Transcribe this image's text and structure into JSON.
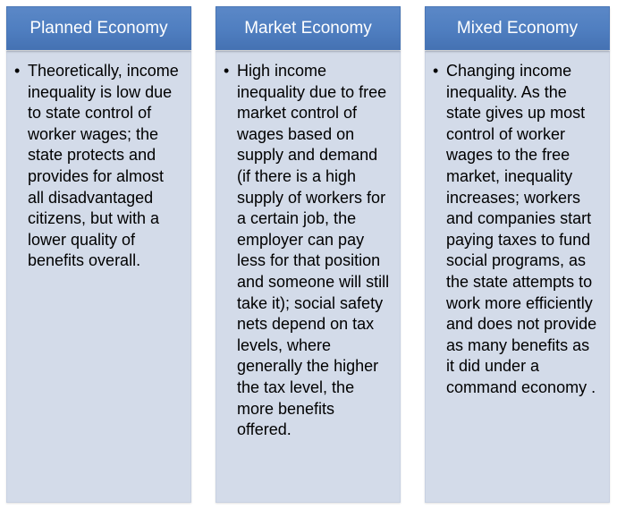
{
  "columns": [
    {
      "title": "Planned Economy",
      "bullet": "•",
      "text": "Theoretically, income inequality is low due to state control of worker wages; the state protects and provides for almost all disadvantaged citizens, but with a lower quality of benefits overall."
    },
    {
      "title": "Market Economy",
      "bullet": "•",
      "text": "High income inequality due to free market control of wages based on supply and demand (if there is a high supply of workers for a certain job, the employer can pay less for that position and someone will still take it); social safety nets depend on tax levels, where generally the higher the tax level, the more benefits offered."
    },
    {
      "title": "Mixed Economy",
      "bullet": "•",
      "text": "Changing income inequality. As the state gives up most control of worker wages to the free market, inequality increases; workers and companies start paying taxes to fund social programs, as the state attempts to work more efficiently and does not provide as many benefits as it did under a command economy ."
    }
  ],
  "colors": {
    "header_fill": "#4f7ec0",
    "header_text": "#ffffff",
    "body_fill": "#d3dbe9",
    "body_text": "#000000"
  }
}
